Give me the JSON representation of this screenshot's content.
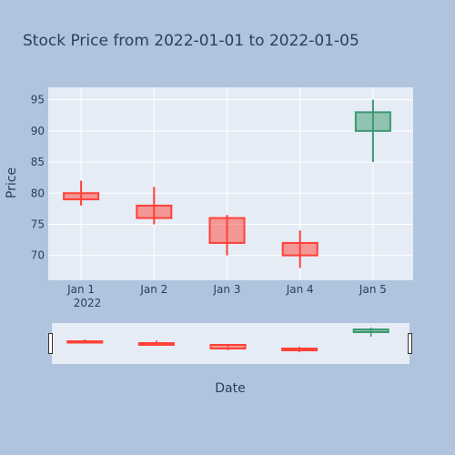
{
  "chart_data": {
    "type": "candlestick",
    "title": "Stock Price from 2022-01-01 to 2022-01-05",
    "xlabel": "Date",
    "ylabel": "Price",
    "x_year_label": "2022",
    "ylim": [
      66,
      97
    ],
    "yticks": [
      70,
      75,
      80,
      85,
      90,
      95
    ],
    "categories": [
      "Jan 1",
      "Jan 2",
      "Jan 3",
      "Jan 4",
      "Jan 5"
    ],
    "ohlc": [
      {
        "date": "Jan 1",
        "open": 80,
        "high": 82,
        "low": 78,
        "close": 79
      },
      {
        "date": "Jan 2",
        "open": 78,
        "high": 81,
        "low": 75,
        "close": 76
      },
      {
        "date": "Jan 3",
        "open": 76,
        "high": 76.5,
        "low": 70,
        "close": 72
      },
      {
        "date": "Jan 4",
        "open": 72,
        "high": 74,
        "low": 68,
        "close": 70
      },
      {
        "date": "Jan 5",
        "open": 90,
        "high": 95,
        "low": 85,
        "close": 93
      }
    ],
    "increasing_color": "#3d9970",
    "decreasing_color": "#ff4136",
    "plot_background": "#e5ecf6",
    "page_background": "#b0c4de",
    "grid": true,
    "rangeslider": true
  }
}
